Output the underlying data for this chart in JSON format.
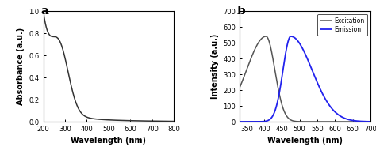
{
  "panel_a": {
    "label": "a",
    "xlabel": "Wavelength (nm)",
    "ylabel": "Absorbance (a.u.)",
    "xlim": [
      200,
      800
    ],
    "ylim": [
      0.0,
      1.0
    ],
    "xticks": [
      200,
      300,
      400,
      500,
      600,
      700,
      800
    ],
    "yticks": [
      0.0,
      0.2,
      0.4,
      0.6,
      0.8,
      1.0
    ],
    "line_color": "#333333"
  },
  "panel_b": {
    "label": "b",
    "xlabel": "Wavelength (nm)",
    "ylabel": "Intensity (a.u.)",
    "xlim": [
      330,
      700
    ],
    "ylim": [
      0,
      700
    ],
    "xticks": [
      350,
      400,
      450,
      500,
      550,
      600,
      650,
      700
    ],
    "yticks": [
      0,
      100,
      200,
      300,
      400,
      500,
      600,
      700
    ],
    "excitation_color": "#555555",
    "emission_color": "#2222ee",
    "legend_excitation": "Excitation",
    "legend_emission": "Emission"
  }
}
